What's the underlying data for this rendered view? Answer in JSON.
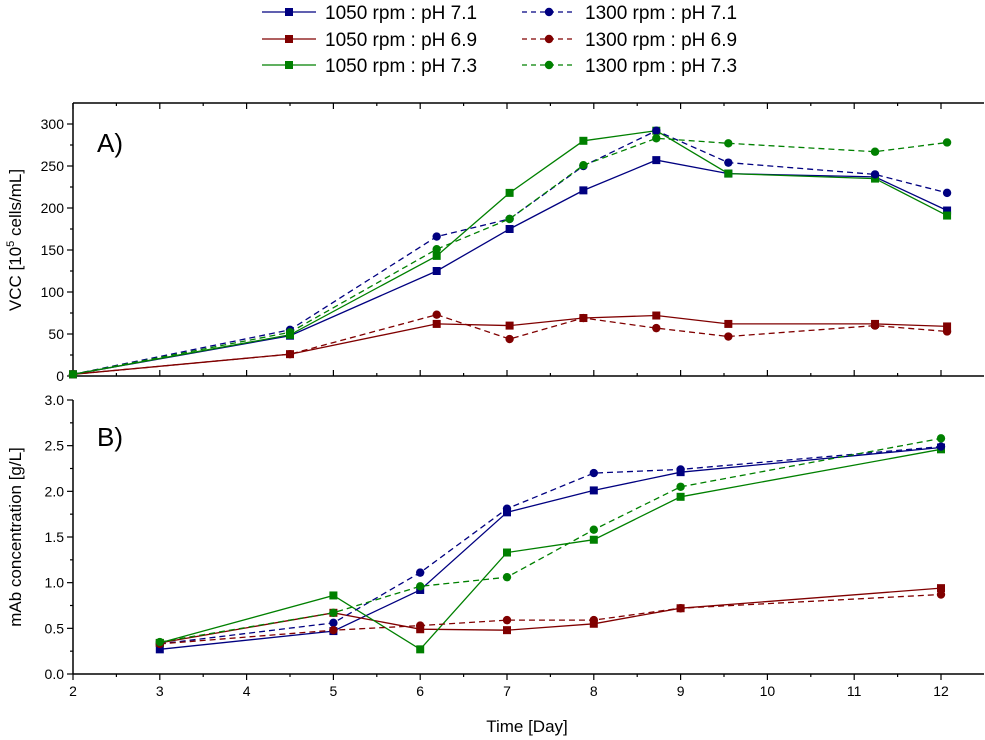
{
  "chart_data": [
    {
      "type": "line",
      "panel_label": "A)",
      "ylabel": "VCC [10^5 cells/mL]",
      "ylabel_parts": {
        "pre": "VCC [10",
        "sup": "5",
        "post": " cells/mL]"
      },
      "xlabel": "",
      "xlim": [
        2,
        12.5
      ],
      "ylim": [
        0,
        325
      ],
      "yticks": [
        0,
        50,
        100,
        150,
        200,
        250,
        300
      ],
      "yticks_labels": [
        "0",
        "50",
        "100",
        "150",
        "200",
        "250",
        "300"
      ],
      "grid": false,
      "x": [
        2,
        4.5,
        6.19,
        7.03,
        7.88,
        8.72,
        9.55,
        11.24,
        12.07
      ],
      "series": [
        {
          "name": "1050 rpm : pH 7.1",
          "color": "#000080",
          "style": "solid",
          "marker": "square",
          "values": [
            2,
            48,
            125,
            175,
            221,
            257,
            241,
            237,
            197
          ]
        },
        {
          "name": "1050 rpm : pH 6.9",
          "color": "#800000",
          "style": "solid",
          "marker": "square",
          "values": [
            2,
            26,
            62,
            60,
            69,
            72,
            62,
            62,
            59
          ]
        },
        {
          "name": "1050 rpm : pH 7.3",
          "color": "#008000",
          "style": "solid",
          "marker": "square",
          "values": [
            2,
            49,
            143,
            218,
            280,
            292,
            241,
            235,
            191
          ]
        },
        {
          "name": "1300 rpm : pH 7.1",
          "color": "#000080",
          "style": "dashed",
          "marker": "circle",
          "values": [
            2,
            55,
            166,
            187,
            250,
            292,
            254,
            240,
            218
          ]
        },
        {
          "name": "1300 rpm : pH 6.9",
          "color": "#800000",
          "style": "dashed",
          "marker": "circle",
          "values": [
            2,
            26,
            73,
            44,
            69,
            57,
            47,
            60,
            53
          ]
        },
        {
          "name": "1300 rpm : pH 7.3",
          "color": "#008000",
          "style": "dashed",
          "marker": "circle",
          "values": [
            2,
            52,
            151,
            187,
            251,
            283,
            277,
            267,
            278
          ]
        }
      ]
    },
    {
      "type": "line",
      "panel_label": "B)",
      "ylabel": "mAb concentration [g/L]",
      "xlabel": "Time [Day]",
      "xlim": [
        2,
        12.5
      ],
      "ylim": [
        0,
        3.0
      ],
      "yticks": [
        0,
        0.5,
        1.0,
        1.5,
        2.0,
        2.5,
        3.0
      ],
      "yticks_labels": [
        "0.0",
        "0.5",
        "1.0",
        "1.5",
        "2.0",
        "2.5",
        "3.0"
      ],
      "xticks": [
        2,
        3,
        4,
        5,
        6,
        7,
        8,
        9,
        10,
        11,
        12
      ],
      "xticks_labels": [
        "2",
        "3",
        "4",
        "5",
        "6",
        "7",
        "8",
        "9",
        "10",
        "11",
        "12"
      ],
      "grid": false,
      "x": [
        3,
        5,
        6,
        7,
        8,
        9,
        12
      ],
      "series": [
        {
          "name": "1050 rpm : pH 7.1",
          "color": "#000080",
          "style": "solid",
          "marker": "square",
          "values": [
            0.27,
            0.47,
            0.92,
            1.77,
            2.01,
            2.21,
            2.48
          ]
        },
        {
          "name": "1050 rpm : pH 6.9",
          "color": "#800000",
          "style": "solid",
          "marker": "square",
          "values": [
            0.34,
            0.67,
            0.49,
            0.48,
            0.55,
            0.72,
            0.94
          ]
        },
        {
          "name": "1050 rpm : pH 7.3",
          "color": "#008000",
          "style": "solid",
          "marker": "square",
          "values": [
            0.34,
            0.86,
            0.27,
            1.33,
            1.47,
            1.94,
            2.46
          ]
        },
        {
          "name": "1300 rpm : pH 7.1",
          "color": "#000080",
          "style": "dashed",
          "marker": "circle",
          "values": [
            0.33,
            0.56,
            1.11,
            1.81,
            2.2,
            2.24,
            2.49
          ]
        },
        {
          "name": "1300 rpm : pH 6.9",
          "color": "#800000",
          "style": "dashed",
          "marker": "circle",
          "values": [
            0.33,
            0.48,
            0.53,
            0.59,
            0.59,
            0.72,
            0.87
          ]
        },
        {
          "name": "1300 rpm : pH 7.3",
          "color": "#008000",
          "style": "dashed",
          "marker": "circle",
          "values": [
            0.35,
            0.67,
            0.96,
            1.06,
            1.58,
            2.05,
            2.58
          ]
        }
      ]
    }
  ],
  "legend": {
    "placement": "top-center",
    "columns": 2,
    "entries": [
      {
        "label": "1050 rpm : pH 7.1",
        "color": "#000080",
        "style": "solid",
        "marker": "square"
      },
      {
        "label": "1300 rpm : pH 7.1",
        "color": "#000080",
        "style": "dashed",
        "marker": "circle"
      },
      {
        "label": "1050 rpm : pH 6.9",
        "color": "#800000",
        "style": "solid",
        "marker": "square"
      },
      {
        "label": "1300 rpm : pH 6.9",
        "color": "#800000",
        "style": "dashed",
        "marker": "circle"
      },
      {
        "label": "1050 rpm : pH 7.3",
        "color": "#008000",
        "style": "solid",
        "marker": "square"
      },
      {
        "label": "1300 rpm : pH 7.3",
        "color": "#008000",
        "style": "dashed",
        "marker": "circle"
      }
    ]
  }
}
